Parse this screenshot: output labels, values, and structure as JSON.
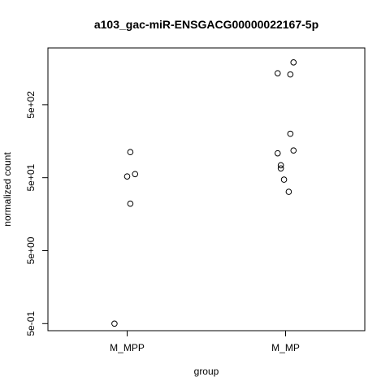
{
  "chart_data": {
    "type": "scatter",
    "title": "a103_gac-miR-ENSGACG00000022167-5p",
    "xlabel": "group",
    "ylabel": "normalized count",
    "y_scale": "log10",
    "ylim": [
      0.4,
      3000
    ],
    "categories": [
      "M_MPP",
      "M_MP"
    ],
    "y_ticks": [
      {
        "value": 0.5,
        "label": "5e-01"
      },
      {
        "value": 5,
        "label": "5e+00"
      },
      {
        "value": 50,
        "label": "5e+01"
      },
      {
        "value": 500,
        "label": "5e+02"
      }
    ],
    "series": [
      {
        "category": "M_MPP",
        "points": [
          {
            "jitter": 0.02,
            "y": 112
          },
          {
            "jitter": 0.05,
            "y": 56
          },
          {
            "jitter": 0.0,
            "y": 52
          },
          {
            "jitter": 0.02,
            "y": 22
          },
          {
            "jitter": -0.08,
            "y": 0.5
          }
        ]
      },
      {
        "category": "M_MP",
        "points": [
          {
            "jitter": 0.05,
            "y": 1900
          },
          {
            "jitter": -0.05,
            "y": 1350
          },
          {
            "jitter": 0.03,
            "y": 1300
          },
          {
            "jitter": 0.03,
            "y": 200
          },
          {
            "jitter": 0.05,
            "y": 118
          },
          {
            "jitter": -0.05,
            "y": 108
          },
          {
            "jitter": -0.03,
            "y": 74
          },
          {
            "jitter": -0.03,
            "y": 67
          },
          {
            "jitter": -0.01,
            "y": 47
          },
          {
            "jitter": 0.02,
            "y": 32
          }
        ]
      }
    ]
  }
}
